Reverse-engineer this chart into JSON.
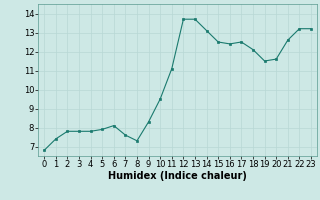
{
  "x": [
    0,
    1,
    2,
    3,
    4,
    5,
    6,
    7,
    8,
    9,
    10,
    11,
    12,
    13,
    14,
    15,
    16,
    17,
    18,
    19,
    20,
    21,
    22,
    23
  ],
  "y": [
    6.8,
    7.4,
    7.8,
    7.8,
    7.8,
    7.9,
    8.1,
    7.6,
    7.3,
    8.3,
    9.5,
    11.1,
    13.7,
    13.7,
    13.1,
    12.5,
    12.4,
    12.5,
    12.1,
    11.5,
    11.6,
    12.6,
    13.2,
    13.2
  ],
  "xlabel": "Humidex (Indice chaleur)",
  "ylim": [
    6.5,
    14.5
  ],
  "xlim": [
    -0.5,
    23.5
  ],
  "yticks": [
    7,
    8,
    9,
    10,
    11,
    12,
    13,
    14
  ],
  "xticks": [
    0,
    1,
    2,
    3,
    4,
    5,
    6,
    7,
    8,
    9,
    10,
    11,
    12,
    13,
    14,
    15,
    16,
    17,
    18,
    19,
    20,
    21,
    22,
    23
  ],
  "line_color": "#1a7a6e",
  "marker_color": "#1a7a6e",
  "bg_color": "#cde8e5",
  "grid_color": "#b8d8d5",
  "xlabel_fontsize": 7,
  "tick_fontsize": 6
}
